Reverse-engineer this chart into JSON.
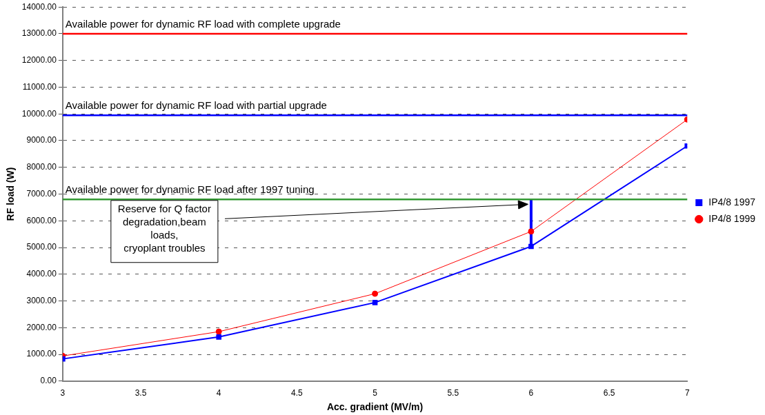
{
  "chart_data": {
    "type": "line",
    "xlabel": "Acc. gradient (MV/m)",
    "ylabel": "RF load (W)",
    "xlim": [
      3,
      7
    ],
    "xticks": [
      3,
      3.5,
      4,
      4.5,
      5,
      5.5,
      6,
      6.5,
      7
    ],
    "ylim": [
      0,
      14000
    ],
    "yticks": [
      {
        "value": 0,
        "label": "0.00"
      },
      {
        "value": 1000,
        "label": "1000.00"
      },
      {
        "value": 2000,
        "label": "2000.00"
      },
      {
        "value": 3000,
        "label": "3000.00"
      },
      {
        "value": 4000,
        "label": "4000.00"
      },
      {
        "value": 5000,
        "label": "5000.00"
      },
      {
        "value": 6000,
        "label": "6000.00"
      },
      {
        "value": 7000,
        "label": "7000.00"
      },
      {
        "value": 8000,
        "label": "8000.00"
      },
      {
        "value": 9000,
        "label": "9000.00"
      },
      {
        "value": 10000,
        "label": "10000.00"
      },
      {
        "value": 11000,
        "label": "11000.00"
      },
      {
        "value": 12000,
        "label": "12000.00"
      },
      {
        "value": 13000,
        "label": "13000.00"
      },
      {
        "value": 14000,
        "label": "14000.00"
      }
    ],
    "x": [
      3,
      4,
      5,
      6,
      7
    ],
    "series": [
      {
        "name": "IP4/8 1997",
        "color": "#0000ff",
        "marker": "square",
        "values": [
          830,
          1650,
          2940,
          5040,
          8800
        ]
      },
      {
        "name": "IP4/8 1999",
        "color": "#ff0000",
        "marker": "circle",
        "values": [
          940,
          1850,
          3270,
          5600,
          9790
        ]
      },
      {
        "type": "line",
        "color": "#0000ff",
        "marker": "none",
        "x": [
          6,
          6
        ],
        "values": [
          5040,
          6800
        ]
      }
    ],
    "ref_lines": [
      {
        "axis": "y",
        "value": 13000,
        "label": "Available power for dynamic RF load with complete upgrade",
        "color": "#ff0000"
      },
      {
        "axis": "y",
        "value": 9950,
        "label": "Available power for dynamic RF load with partial upgrade",
        "color": "#0000ff"
      },
      {
        "axis": "y",
        "value": 6800,
        "label": "Available power for dynamic RF load after 1997 tuning",
        "color": "#339933"
      }
    ],
    "annotations": [
      "Reserve for Q factor\ndegradation,beam\nloads,\ncryoplant troubles"
    ],
    "grid": "y",
    "legend": "right"
  }
}
